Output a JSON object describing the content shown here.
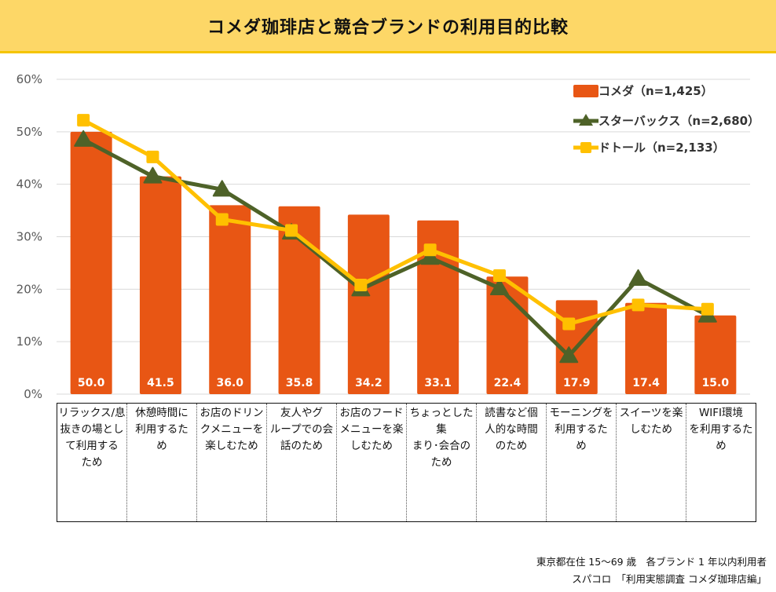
{
  "title": "コメダ珈琲店と競合ブランドの利用目的比較",
  "chart_data": {
    "type": "bar",
    "title": "コメダ珈琲店と競合ブランドの利用目的比較",
    "xlabel": "",
    "ylabel": "",
    "ylim": [
      0,
      60
    ],
    "yticks": [
      "0%",
      "10%",
      "20%",
      "30%",
      "40%",
      "50%",
      "60%"
    ],
    "grid": true,
    "legend_position": "top-right",
    "categories": [
      "リラックス/息\n抜きの場とし\nて利用する\nため",
      "休憩時間に\n利用するた\nめ",
      "お店のドリン\nクメニューを\n楽しむため",
      "友人やグ\nループでの会\n話のため",
      "お店のフード\nメニューを楽\nしむため",
      "ちょっとした集\nまり･会合の\nため",
      "読書など個\n人的な時間\nのため",
      "モーニングを\n利用するた\nめ",
      "スイーツを楽\nしむため",
      "WIFI環境\nを利用するた\nめ"
    ],
    "series": [
      {
        "name": "コメダ（n=1,425）",
        "type": "bar",
        "color": "#e85614",
        "values": [
          50.0,
          41.5,
          36.0,
          35.8,
          34.2,
          33.1,
          22.4,
          17.9,
          17.4,
          15.0
        ],
        "labels": [
          "50.0",
          "41.5",
          "36.0",
          "35.8",
          "34.2",
          "33.1",
          "22.4",
          "17.9",
          "17.4",
          "15.0"
        ]
      },
      {
        "name": "スターバックス（n=2,680）",
        "type": "line",
        "marker": "triangle",
        "color": "#4e6228",
        "values": [
          48.5,
          41.5,
          39.0,
          30.8,
          20.0,
          26.0,
          20.2,
          7.3,
          22.0,
          15.0
        ]
      },
      {
        "name": "ドトール（n=2,133）",
        "type": "line",
        "marker": "square",
        "color": "#ffc000",
        "values": [
          52.2,
          45.2,
          33.3,
          31.2,
          20.8,
          27.5,
          22.6,
          13.4,
          17.0,
          16.2
        ]
      }
    ]
  },
  "footnotes": [
    "東京都在住 15〜69 歳　各ブランド 1 年以内利用者",
    "スパコロ　「利用実態調査 コメダ珈琲店編」"
  ]
}
